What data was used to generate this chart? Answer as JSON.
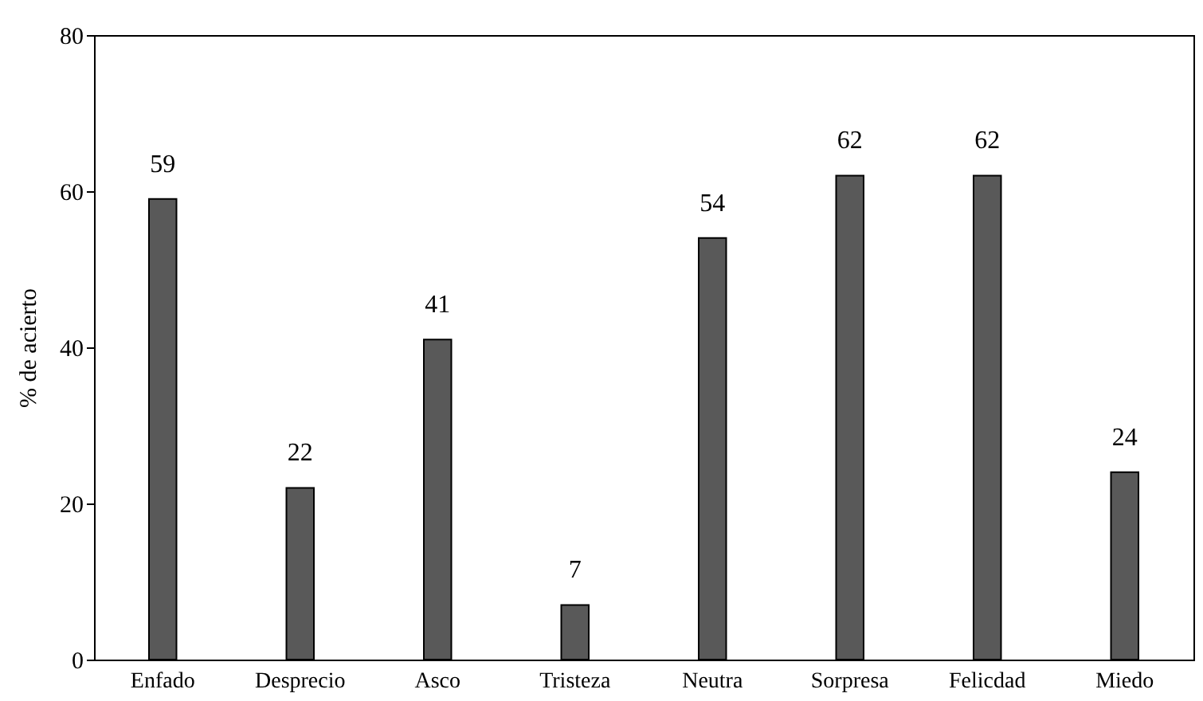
{
  "chart_data": {
    "type": "bar",
    "ylabel": "% de acierto",
    "categories": [
      "Enfado",
      "Desprecio",
      "Asco",
      "Tristeza",
      "Neutra",
      "Sorpresa",
      "Felicdad",
      "Miedo"
    ],
    "values": [
      59,
      22,
      41,
      7,
      54,
      62,
      62,
      24
    ],
    "color": "#595959",
    "ylim": [
      0,
      80
    ],
    "yticks": [
      0,
      20,
      40,
      60,
      80
    ],
    "grid": false,
    "data_labels": true
  }
}
